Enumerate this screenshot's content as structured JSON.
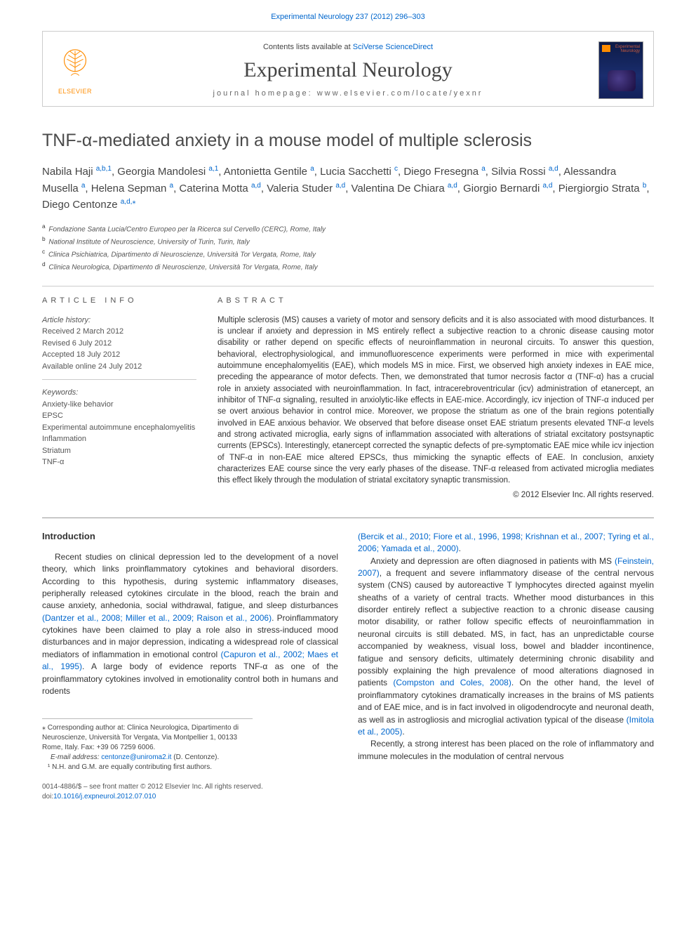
{
  "top_citation": "Experimental Neurology 237 (2012) 296–303",
  "header": {
    "contents_prefix": "Contents lists available at ",
    "contents_link": "SciVerse ScienceDirect",
    "journal_name": "Experimental Neurology",
    "homepage_label": "journal homepage: www.elsevier.com/locate/yexnr",
    "elsevier_label": "ELSEVIER",
    "cover_title": "Experimental\nNeurology"
  },
  "article": {
    "title": "TNF-α-mediated anxiety in a mouse model of multiple sclerosis",
    "authors_html": "Nabila Haji <sup>a,b,1</sup>, Georgia Mandolesi <sup>a,1</sup>, Antonietta Gentile <sup>a</sup>, Lucia Sacchetti <sup>c</sup>, Diego Fresegna <sup>a</sup>, Silvia Rossi <sup>a,d</sup>, Alessandra Musella <sup>a</sup>, Helena Sepman <sup>a</sup>, Caterina Motta <sup>a,d</sup>, Valeria Studer <sup>a,d</sup>, Valentina De Chiara <sup>a,d</sup>, Giorgio Bernardi <sup>a,d</sup>, Piergiorgio Strata <sup>b</sup>, Diego Centonze <sup>a,d,</sup>",
    "corr_mark": "⁎",
    "affiliations": [
      {
        "sup": "a",
        "text": "Fondazione Santa Lucia/Centro Europeo per la Ricerca sul Cervello (CERC), Rome, Italy"
      },
      {
        "sup": "b",
        "text": "National Institute of Neuroscience, University of Turin, Turin, Italy"
      },
      {
        "sup": "c",
        "text": "Clinica Psichiatrica, Dipartimento di Neuroscienze, Università Tor Vergata, Rome, Italy"
      },
      {
        "sup": "d",
        "text": "Clinica Neurologica, Dipartimento di Neuroscienze, Università Tor Vergata, Rome, Italy"
      }
    ]
  },
  "info": {
    "heading": "article info",
    "history_head": "Article history:",
    "history": [
      "Received 2 March 2012",
      "Revised 6 July 2012",
      "Accepted 18 July 2012",
      "Available online 24 July 2012"
    ],
    "keywords_head": "Keywords:",
    "keywords": [
      "Anxiety-like behavior",
      "EPSC",
      "Experimental autoimmune encephalomyelitis",
      "Inflammation",
      "Striatum",
      "TNF-α"
    ]
  },
  "abstract": {
    "heading": "abstract",
    "text": "Multiple sclerosis (MS) causes a variety of motor and sensory deficits and it is also associated with mood disturbances. It is unclear if anxiety and depression in MS entirely reflect a subjective reaction to a chronic disease causing motor disability or rather depend on specific effects of neuroinflammation in neuronal circuits. To answer this question, behavioral, electrophysiological, and immunofluorescence experiments were performed in mice with experimental autoimmune encephalomyelitis (EAE), which models MS in mice. First, we observed high anxiety indexes in EAE mice, preceding the appearance of motor defects. Then, we demonstrated that tumor necrosis factor α (TNF-α) has a crucial role in anxiety associated with neuroinflammation. In fact, intracerebroventricular (icv) administration of etanercept, an inhibitor of TNF-α signaling, resulted in anxiolytic-like effects in EAE-mice. Accordingly, icv injection of TNF-α induced per se overt anxious behavior in control mice. Moreover, we propose the striatum as one of the brain regions potentially involved in EAE anxious behavior. We observed that before disease onset EAE striatum presents elevated TNF-α levels and strong activated microglia, early signs of inflammation associated with alterations of striatal excitatory postsynaptic currents (EPSCs). Interestingly, etanercept corrected the synaptic defects of pre-symptomatic EAE mice while icv injection of TNF-α in non-EAE mice altered EPSCs, thus mimicking the synaptic effects of EAE. In conclusion, anxiety characterizes EAE course since the very early phases of the disease. TNF-α released from activated microglia mediates this effect likely through the modulation of striatal excitatory synaptic transmission.",
    "copyright": "© 2012 Elsevier Inc. All rights reserved."
  },
  "body": {
    "intro_heading": "Introduction",
    "left_p1_a": "Recent studies on clinical depression led to the development of a novel theory, which links proinflammatory cytokines and behavioral disorders. According to this hypothesis, during systemic inflammatory diseases, peripherally released cytokines circulate in the blood, reach the brain and cause anxiety, anhedonia, social withdrawal, fatigue, and sleep disturbances ",
    "left_ref1": "(Dantzer et al., 2008; Miller et al., 2009; Raison et al., 2006)",
    "left_p1_b": ". Proinflammatory cytokines have been claimed to play a role also in stress-induced mood disturbances and in major depression, indicating a widespread role of classical mediators of inflammation in emotional control ",
    "left_ref2": "(Capuron et al., 2002; Maes et al., 1995)",
    "left_p1_c": ". A large body of evidence reports TNF-α as one of the proinflammatory cytokines involved in emotionality control both in humans and rodents",
    "right_ref0": "(Bercik et al., 2010; Fiore et al., 1996, 1998; Krishnan et al., 2007; Tyring et al., 2006; Yamada et al., 2000)",
    "right_ref0_tail": ".",
    "right_p1_a": "Anxiety and depression are often diagnosed in patients with MS ",
    "right_ref1": "(Feinstein, 2007)",
    "right_p1_b": ", a frequent and severe inflammatory disease of the central nervous system (CNS) caused by autoreactive T lymphocytes directed against myelin sheaths of a variety of central tracts. Whether mood disturbances in this disorder entirely reflect a subjective reaction to a chronic disease causing motor disability, or rather follow specific effects of neuroinflammation in neuronal circuits is still debated. MS, in fact, has an unpredictable course accompanied by weakness, visual loss, bowel and bladder incontinence, fatigue and sensory deficits, ultimately determining chronic disability and possibly explaining the high prevalence of mood alterations diagnosed in patients ",
    "right_ref2": "(Compston and Coles, 2008)",
    "right_p1_c": ". On the other hand, the level of proinflammatory cytokines dramatically increases in the brains of MS patients and of EAE mice, and is in fact involved in oligodendrocyte and neuronal death, as well as in astrogliosis and microglial activation typical of the disease ",
    "right_ref3": "(Imitola et al., 2005)",
    "right_ref3_tail": ".",
    "right_p2": "Recently, a strong interest has been placed on the role of inflammatory and immune molecules in the modulation of central nervous"
  },
  "footnotes": {
    "corr": "⁎ Corresponding author at: Clinica Neurologica, Dipartimento di Neuroscienze, Università Tor Vergata, Via Montpellier 1, 00133 Rome, Italy. Fax: +39 06 7259 6006.",
    "email_label": "E-mail address: ",
    "email": "centonze@uniroma2.it",
    "email_tail": " (D. Centonze).",
    "note1": "¹ N.H. and G.M. are equally contributing first authors."
  },
  "bottom": {
    "line1": "0014-4886/$ – see front matter © 2012 Elsevier Inc. All rights reserved.",
    "doi_label": "doi:",
    "doi": "10.1016/j.expneurol.2012.07.010"
  },
  "colors": {
    "link": "#0066cc",
    "text": "#333333",
    "muted": "#555555",
    "orange": "#ff8c00",
    "border": "#cccccc"
  },
  "typography": {
    "journal_font": "Times New Roman",
    "journal_size_pt": 30,
    "title_size_pt": 25,
    "body_size_pt": 12,
    "abstract_size_pt": 11.5,
    "small_size_pt": 10
  }
}
